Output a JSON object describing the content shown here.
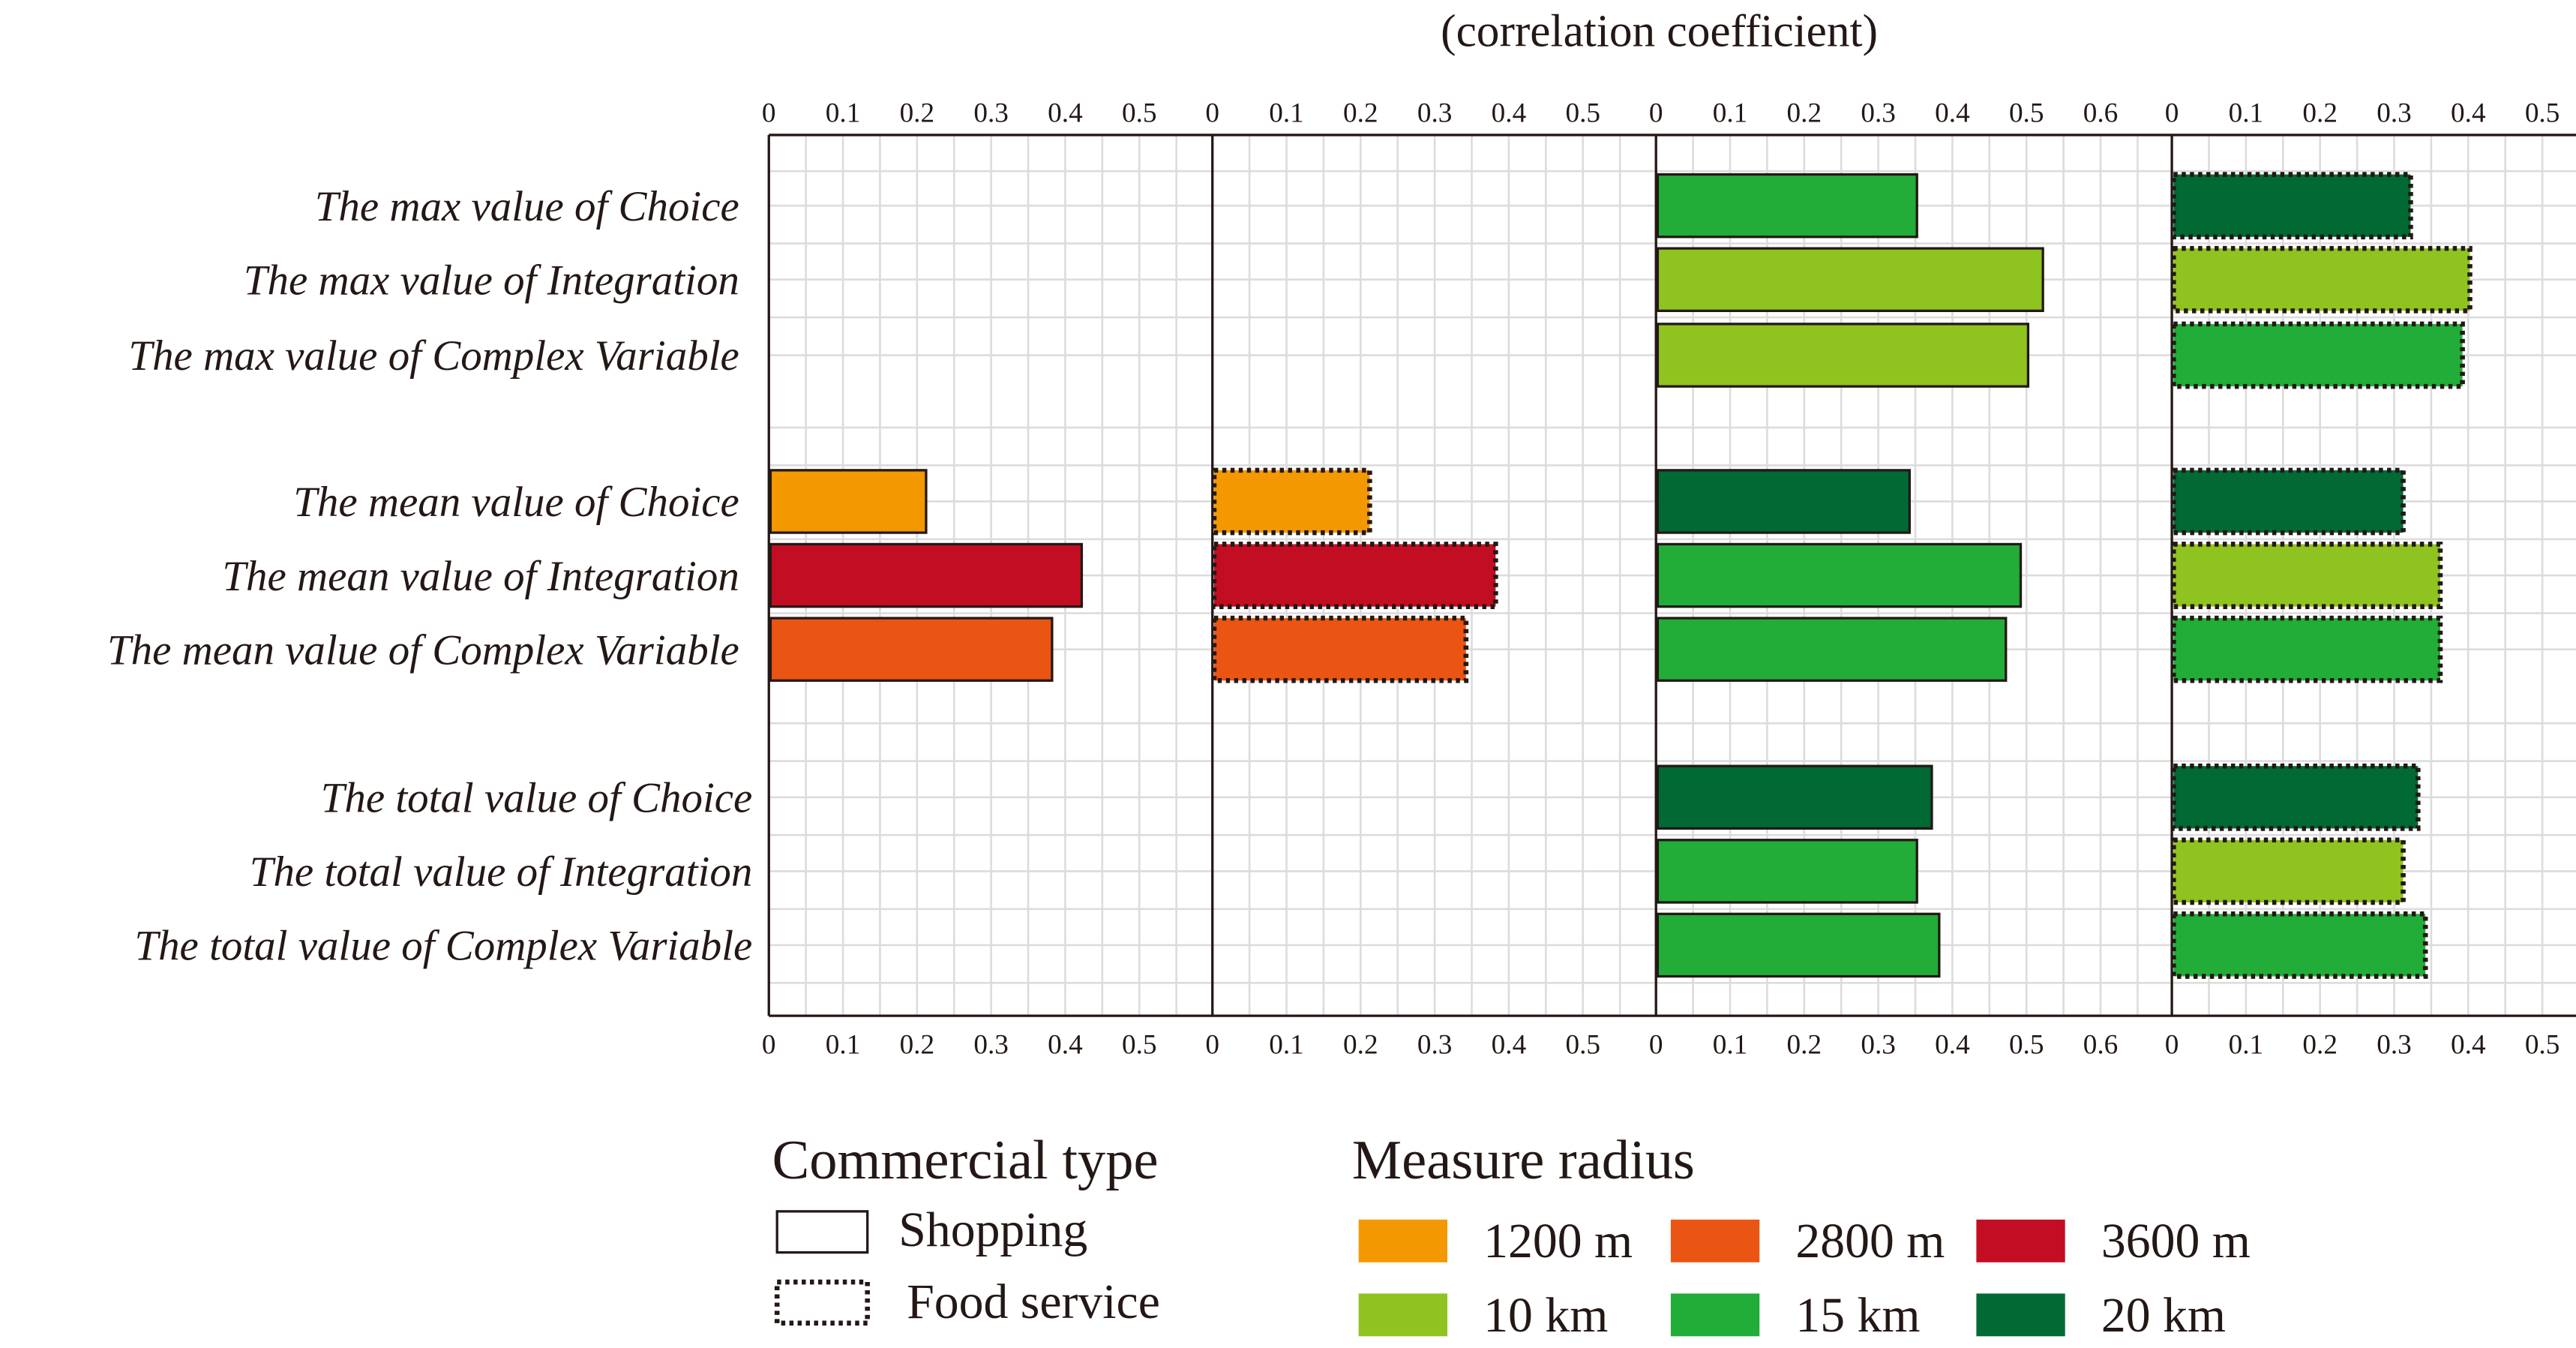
{
  "chart_data": {
    "type": "bar",
    "orientation": "horizontal",
    "title": "(correlation coefficient)",
    "categories": [
      "The max value of Choice",
      "The max value of Integration",
      "The max value of Complex Variable",
      "The mean value of Choice",
      "The mean value of Integration",
      "The mean value of Complex Variable",
      "The total value of Choice",
      "The total value of Integration",
      "The  total value of Complex Variable"
    ],
    "panels": [
      {
        "commercial_type": "Shopping",
        "ticks": [
          "0",
          "0.1",
          "0.2",
          "0.3",
          "0.4",
          "0.5"
        ],
        "xlim": [
          0,
          0.6
        ],
        "values": [
          null,
          null,
          null,
          0.21,
          0.42,
          0.38,
          null,
          null,
          null
        ],
        "radius": [
          null,
          null,
          null,
          "1200 m",
          "3600 m",
          "2800 m",
          null,
          null,
          null
        ]
      },
      {
        "commercial_type": "Food service",
        "ticks": [
          "0",
          "0.1",
          "0.2",
          "0.3",
          "0.4",
          "0.5"
        ],
        "xlim": [
          0,
          0.6
        ],
        "values": [
          null,
          null,
          null,
          0.21,
          0.38,
          0.34,
          null,
          null,
          null
        ],
        "radius": [
          null,
          null,
          null,
          "1200 m",
          "3600 m",
          "2800 m",
          null,
          null,
          null
        ]
      },
      {
        "commercial_type": "Shopping",
        "ticks": [
          "0",
          "0.1",
          "0.2",
          "0.3",
          "0.4",
          "0.5",
          "0.6"
        ],
        "xlim": [
          0,
          0.68
        ],
        "values": [
          0.35,
          0.52,
          0.5,
          0.34,
          0.49,
          0.47,
          0.37,
          0.35,
          0.38
        ],
        "radius": [
          "15 km",
          "10 km",
          "10 km",
          "20 km",
          "15 km",
          "15 km",
          "20 km",
          "15 km",
          "15 km"
        ]
      },
      {
        "commercial_type": "Food service",
        "ticks": [
          "0",
          "0.1",
          "0.2",
          "0.3",
          "0.4",
          "0.5"
        ],
        "xlim": [
          0,
          0.54
        ],
        "values": [
          0.32,
          0.4,
          0.39,
          0.31,
          0.36,
          0.36,
          0.33,
          0.31,
          0.34
        ],
        "radius": [
          "20 km",
          "10 km",
          "15 km",
          "20 km",
          "10 km",
          "15 km",
          "20 km",
          "10 km",
          "15 km"
        ]
      }
    ],
    "legend": {
      "commercial_type_title": "Commercial type",
      "commercial_types": [
        "Shopping",
        "Food service"
      ],
      "radius_title": "Measure radius",
      "radii": [
        {
          "label": "1200 m",
          "color": "#f39800"
        },
        {
          "label": "2800 m",
          "color": "#ea5514"
        },
        {
          "label": "3600 m",
          "color": "#c30d23"
        },
        {
          "label": "10 km",
          "color": "#8fc31f"
        },
        {
          "label": "15 km",
          "color": "#22ac38"
        },
        {
          "label": "20 km",
          "color": "#006934"
        }
      ],
      "placement": "bottom"
    }
  }
}
